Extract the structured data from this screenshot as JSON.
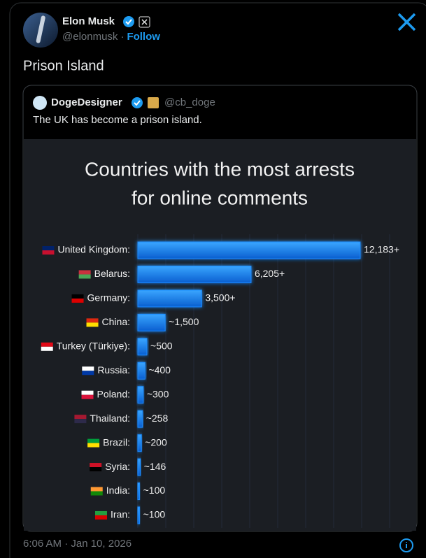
{
  "tweet": {
    "author": {
      "name": "Elon Musk",
      "handle": "@elonmusk",
      "separator": "·",
      "follow": "Follow"
    },
    "text": "Prison Island",
    "quote": {
      "author": {
        "name": "DogeDesigner",
        "handle": "@cb_doge"
      },
      "text": "The UK has become a prison island."
    },
    "timestamp": "6:06 AM · Jan 10, 2026"
  },
  "chart_data": {
    "type": "bar",
    "orientation": "horizontal",
    "title": [
      "Countries with the most arrests",
      "for online comments"
    ],
    "categories": [
      "United Kingdom:",
      "Belarus:",
      "Germany:",
      "China:",
      "Turkey (Türkiye):",
      "Russia:",
      "Poland:",
      "Thailand:",
      "Brazil:",
      "Syria:",
      "India:",
      "Iran:"
    ],
    "values": [
      12183,
      6205,
      3500,
      1500,
      500,
      400,
      300,
      258,
      200,
      146,
      100,
      100
    ],
    "value_labels": [
      "12,183+",
      "6,205+",
      "3,500+",
      "~1,500",
      "~500",
      "~400",
      "~300",
      "~258",
      "~200",
      "~146",
      "~100",
      "~100"
    ],
    "color": "#1a8cff"
  }
}
